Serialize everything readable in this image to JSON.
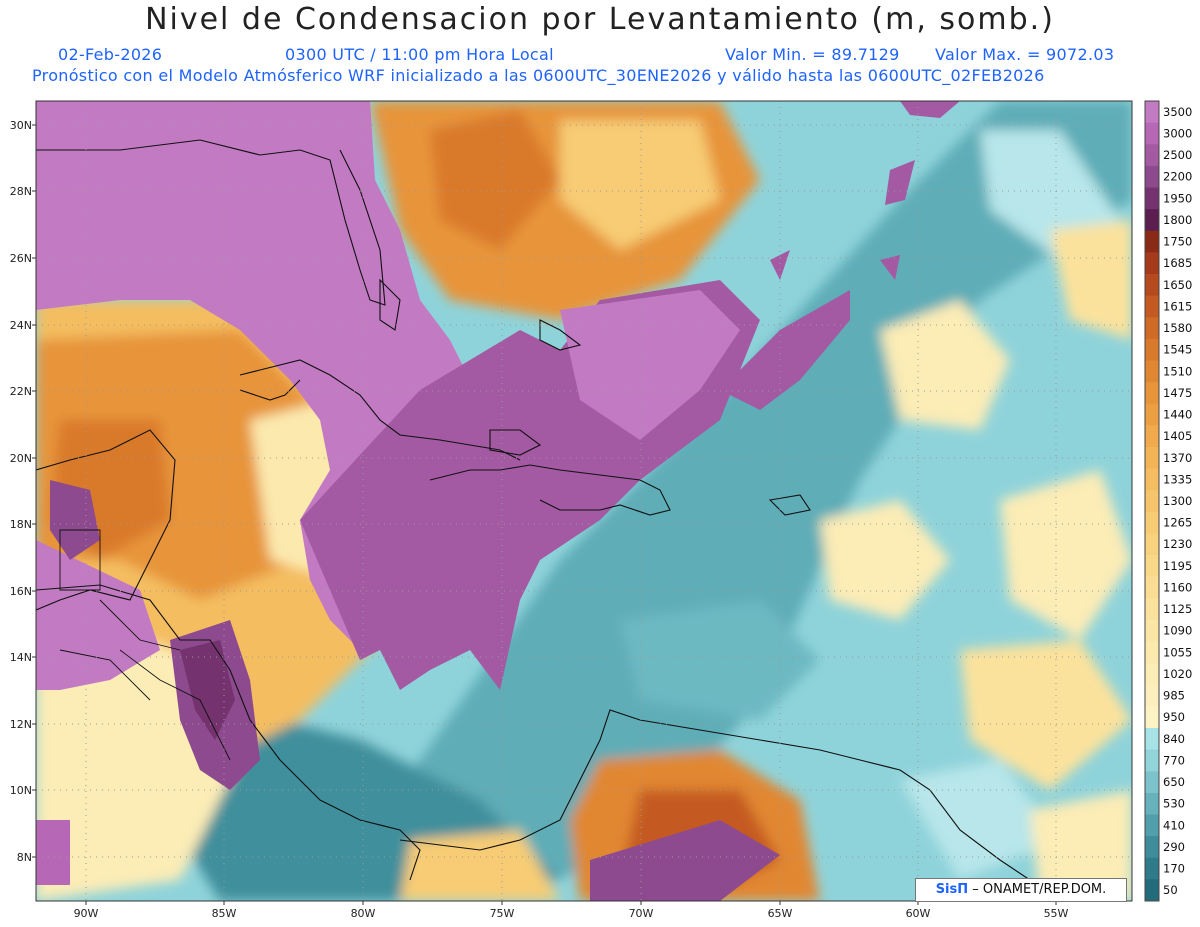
{
  "header": {
    "title": "Nivel de Condensacion por Levantamiento (m, somb.)",
    "date": "02-Feb-2026",
    "time": "0300 UTC / 11:00 pm Hora Local",
    "valmin": "Valor Min. = 89.7129",
    "valmax": "Valor Max. = 9072.03",
    "model_info": "Pronóstico con el Modelo Atmósferico WRF inicializado a las 0600UTC_30ENE2026 y válido hasta las  0600UTC_02FEB2026"
  },
  "axes": {
    "lon_labels": [
      "90W",
      "85W",
      "80W",
      "75W",
      "70W",
      "65W",
      "60W",
      "55W"
    ],
    "lat_labels": [
      "30N",
      "28N",
      "26N",
      "24N",
      "22N",
      "20N",
      "18N",
      "16N",
      "14N",
      "12N",
      "10N",
      "8N"
    ]
  },
  "colorbar": {
    "labels": [
      "3500",
      "3000",
      "2500",
      "2200",
      "1950",
      "1800",
      "1750",
      "1685",
      "1650",
      "1615",
      "1580",
      "1545",
      "1510",
      "1475",
      "1440",
      "1405",
      "1370",
      "1335",
      "1300",
      "1265",
      "1230",
      "1195",
      "1160",
      "1125",
      "1090",
      "1055",
      "1020",
      "985",
      "950",
      "840",
      "770",
      "650",
      "530",
      "410",
      "290",
      "170",
      "50"
    ],
    "colors": [
      "#c27ac2",
      "#b667b6",
      "#a35aa3",
      "#8d4a8f",
      "#74336f",
      "#5c1e4f",
      "#8a2a16",
      "#a4391b",
      "#b64a1f",
      "#c45a22",
      "#cf6a27",
      "#d9792c",
      "#e18733",
      "#e7943a",
      "#ec9f43",
      "#f0aa4d",
      "#f2b457",
      "#f4bd61",
      "#f6c56b",
      "#f7cc75",
      "#f8d27f",
      "#f9d889",
      "#fadd93",
      "#fbe29c",
      "#fbe6a6",
      "#fce9ae",
      "#fcecb6",
      "#fcefbd",
      "#fcf2c4",
      "#a7e2e6",
      "#92d4da",
      "#7cc3cb",
      "#66b1bb",
      "#519fab",
      "#3f8d9b",
      "#2f7b8a",
      "#226b7a"
    ]
  },
  "credit": {
    "logo": "SisΠ",
    "text": "– ONAMET/REP.DOM."
  }
}
